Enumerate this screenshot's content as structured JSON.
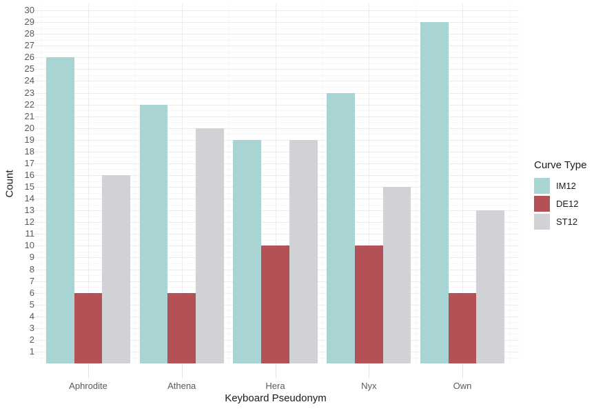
{
  "chart_data": {
    "type": "bar",
    "title": "",
    "xlabel": "Keyboard Pseudonym",
    "ylabel": "Count",
    "legend_title": "Curve Type",
    "legend_position": "right",
    "categories": [
      "Aphrodite",
      "Athena",
      "Hera",
      "Nyx",
      "Own"
    ],
    "series": [
      {
        "name": "IM12",
        "color": "#a8d5d3",
        "values": [
          26,
          22,
          19,
          23,
          29
        ]
      },
      {
        "name": "DE12",
        "color": "#b45156",
        "values": [
          6,
          6,
          10,
          10,
          6
        ]
      },
      {
        "name": "ST12",
        "color": "#d1d2d6",
        "values": [
          16,
          20,
          19,
          15,
          13
        ]
      }
    ],
    "ylim": [
      0,
      30
    ],
    "ytick_step": 1,
    "yticks": [
      1,
      2,
      3,
      4,
      5,
      6,
      7,
      8,
      9,
      10,
      11,
      12,
      13,
      14,
      15,
      16,
      17,
      18,
      19,
      20,
      21,
      22,
      23,
      24,
      25,
      26,
      27,
      28,
      29,
      30
    ],
    "grid": "major+minor",
    "background": "#ffffff",
    "gridline_major_color": "#ebebeb",
    "gridline_minor_color": "#f6f6f6",
    "tick_label_color": "#595959",
    "axis_title_color": "#1a1a1a"
  }
}
